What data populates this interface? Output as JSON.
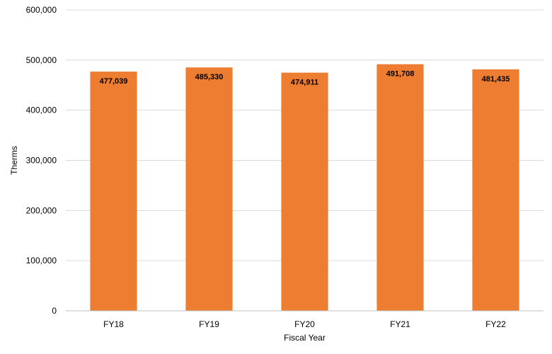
{
  "chart_data": {
    "type": "bar",
    "title": "",
    "xlabel": "Fiscal Year",
    "ylabel": "Therms",
    "categories": [
      "FY18",
      "FY19",
      "FY20",
      "FY21",
      "FY22"
    ],
    "series": [
      {
        "values": [
          477039,
          485330,
          474911,
          491708,
          481435
        ],
        "data_labels": [
          "477,039",
          "485,330",
          "474,911",
          "491,708",
          "481,435"
        ]
      }
    ],
    "ylim": [
      0,
      600000
    ],
    "y_ticks": [
      0,
      100000,
      200000,
      300000,
      400000,
      500000,
      600000
    ],
    "y_tick_labels": [
      "0",
      "100,000",
      "200,000",
      "300,000",
      "400,000",
      "500,000",
      "600,000"
    ],
    "grid": true,
    "legend": "none",
    "colors": {
      "bar": "#ED7D31",
      "grid": "#D9D9D9",
      "axis": "#BFBFBF",
      "text": "#000000"
    }
  }
}
